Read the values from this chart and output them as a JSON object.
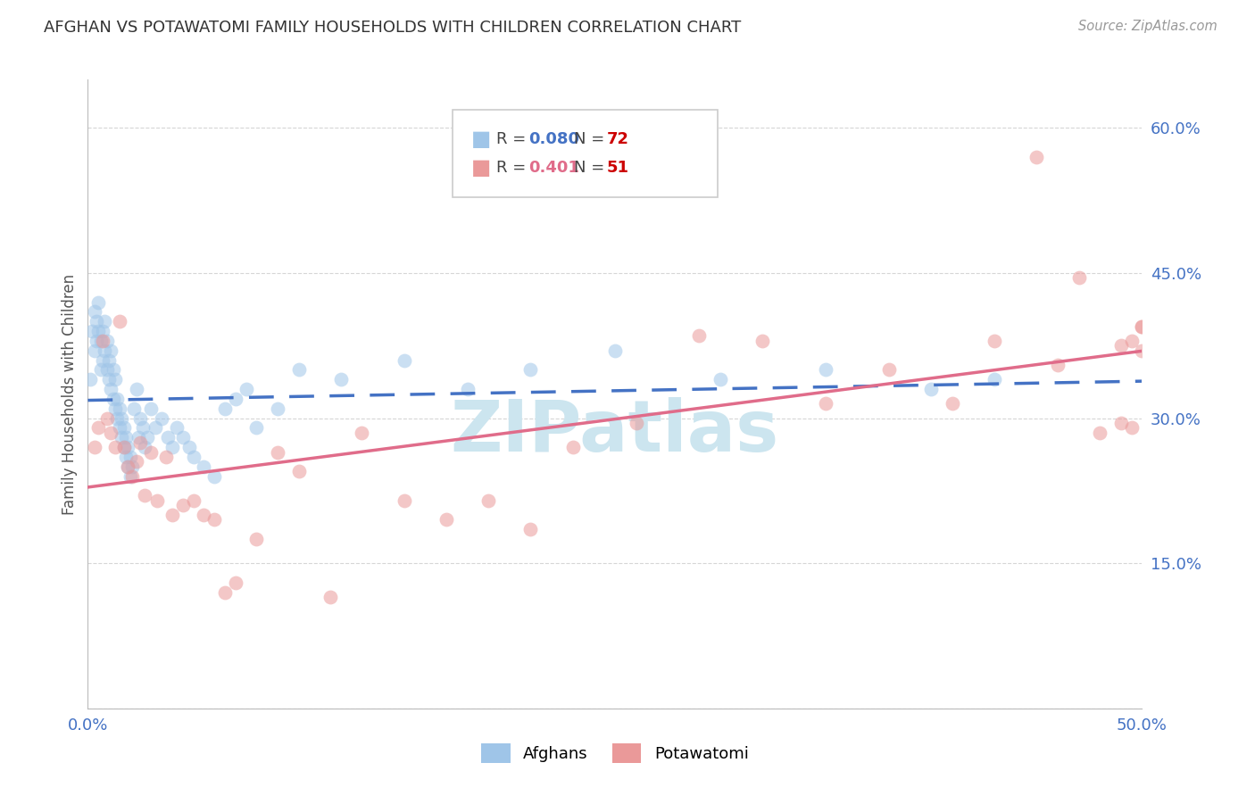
{
  "title": "AFGHAN VS POTAWATOMI FAMILY HOUSEHOLDS WITH CHILDREN CORRELATION CHART",
  "source": "Source: ZipAtlas.com",
  "ylabel": "Family Households with Children",
  "afghan_R": 0.08,
  "afghan_N": 72,
  "potawatomi_R": 0.401,
  "potawatomi_N": 51,
  "afghan_color": "#9fc5e8",
  "potawatomi_color": "#ea9999",
  "afghan_line_color": "#4472c4",
  "potawatomi_line_color": "#e06c8a",
  "afghan_dash_color": "#85c4d4",
  "watermark_color": "#cce5ef",
  "watermark_text": "ZIPatlas",
  "grid_color": "#cccccc",
  "title_color": "#333333",
  "source_color": "#999999",
  "tick_color": "#4472c4",
  "ylabel_color": "#555555",
  "legend_border_color": "#cccccc",
  "xlim": [
    0.0,
    0.5
  ],
  "ylim": [
    0.0,
    0.65
  ],
  "afghan_x": [
    0.001,
    0.002,
    0.003,
    0.003,
    0.004,
    0.004,
    0.005,
    0.005,
    0.006,
    0.006,
    0.007,
    0.007,
    0.008,
    0.008,
    0.009,
    0.009,
    0.01,
    0.01,
    0.011,
    0.011,
    0.012,
    0.012,
    0.013,
    0.013,
    0.014,
    0.014,
    0.015,
    0.015,
    0.016,
    0.016,
    0.017,
    0.017,
    0.018,
    0.018,
    0.019,
    0.019,
    0.02,
    0.02,
    0.021,
    0.022,
    0.023,
    0.024,
    0.025,
    0.026,
    0.027,
    0.028,
    0.03,
    0.032,
    0.035,
    0.038,
    0.04,
    0.042,
    0.045,
    0.048,
    0.05,
    0.055,
    0.06,
    0.065,
    0.07,
    0.075,
    0.08,
    0.09,
    0.1,
    0.12,
    0.15,
    0.18,
    0.21,
    0.25,
    0.3,
    0.35,
    0.4,
    0.43
  ],
  "afghan_y": [
    0.34,
    0.39,
    0.37,
    0.41,
    0.38,
    0.4,
    0.42,
    0.39,
    0.35,
    0.38,
    0.36,
    0.39,
    0.37,
    0.4,
    0.35,
    0.38,
    0.34,
    0.36,
    0.33,
    0.37,
    0.32,
    0.35,
    0.31,
    0.34,
    0.3,
    0.32,
    0.29,
    0.31,
    0.28,
    0.3,
    0.27,
    0.29,
    0.26,
    0.28,
    0.25,
    0.27,
    0.24,
    0.26,
    0.25,
    0.31,
    0.33,
    0.28,
    0.3,
    0.29,
    0.27,
    0.28,
    0.31,
    0.29,
    0.3,
    0.28,
    0.27,
    0.29,
    0.28,
    0.27,
    0.26,
    0.25,
    0.24,
    0.31,
    0.32,
    0.33,
    0.29,
    0.31,
    0.35,
    0.34,
    0.36,
    0.33,
    0.35,
    0.37,
    0.34,
    0.35,
    0.33,
    0.34
  ],
  "potawatomi_x": [
    0.003,
    0.005,
    0.007,
    0.009,
    0.011,
    0.013,
    0.015,
    0.017,
    0.019,
    0.021,
    0.023,
    0.025,
    0.027,
    0.03,
    0.033,
    0.037,
    0.04,
    0.045,
    0.05,
    0.055,
    0.06,
    0.065,
    0.07,
    0.08,
    0.09,
    0.1,
    0.115,
    0.13,
    0.15,
    0.17,
    0.19,
    0.21,
    0.23,
    0.26,
    0.29,
    0.32,
    0.35,
    0.38,
    0.41,
    0.43,
    0.45,
    0.46,
    0.47,
    0.48,
    0.49,
    0.49,
    0.5,
    0.5,
    0.5,
    0.495,
    0.495
  ],
  "potawatomi_y": [
    0.27,
    0.29,
    0.38,
    0.3,
    0.285,
    0.27,
    0.4,
    0.27,
    0.25,
    0.24,
    0.255,
    0.275,
    0.22,
    0.265,
    0.215,
    0.26,
    0.2,
    0.21,
    0.215,
    0.2,
    0.195,
    0.12,
    0.13,
    0.175,
    0.265,
    0.245,
    0.115,
    0.285,
    0.215,
    0.195,
    0.215,
    0.185,
    0.27,
    0.295,
    0.385,
    0.38,
    0.315,
    0.35,
    0.315,
    0.38,
    0.57,
    0.355,
    0.445,
    0.285,
    0.295,
    0.375,
    0.395,
    0.37,
    0.395,
    0.29,
    0.38
  ]
}
